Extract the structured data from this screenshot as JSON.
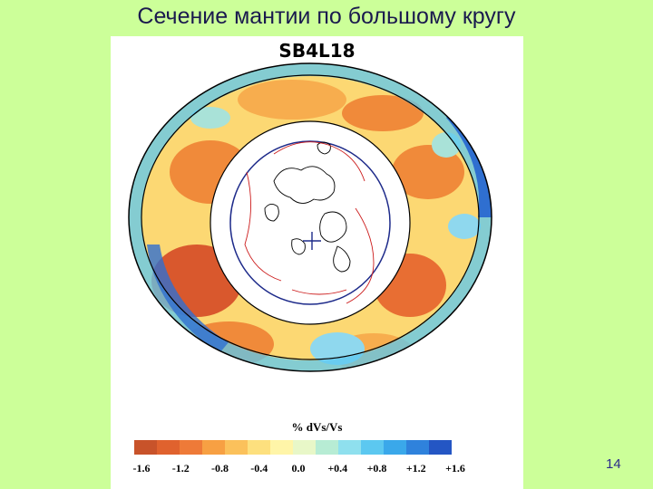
{
  "slide": {
    "title": "Сечение мантии по большому кругу",
    "page_number": "14"
  },
  "figure": {
    "model_name": "SB4L18",
    "scale_label": "% dVs/Vs",
    "colorbar": {
      "colors": [
        "#c8532a",
        "#e0622e",
        "#ee7a38",
        "#f7a043",
        "#fbc15b",
        "#fde07e",
        "#fff5a8",
        "#e8f7c8",
        "#b7ecd4",
        "#8fe0ee",
        "#5cc8f0",
        "#3aa8ea",
        "#2f82dc",
        "#2456c4"
      ],
      "ticks": [
        "-1.6",
        "-1.2",
        "-0.8",
        "-0.4",
        "0.0",
        "+0.4",
        "+0.8",
        "+1.2",
        "+1.6"
      ]
    },
    "section_colors": {
      "slow_strong": "#d9582d",
      "slow": "#f08a3a",
      "warm": "#f7ad4e",
      "neutral": "#fcd873",
      "fast": "#8fd8ee",
      "fast_strong": "#2f6fd0",
      "coastline": "#000000",
      "plate_boundary": "#cc1b1b",
      "core_circle": "#1d2a8a"
    }
  }
}
